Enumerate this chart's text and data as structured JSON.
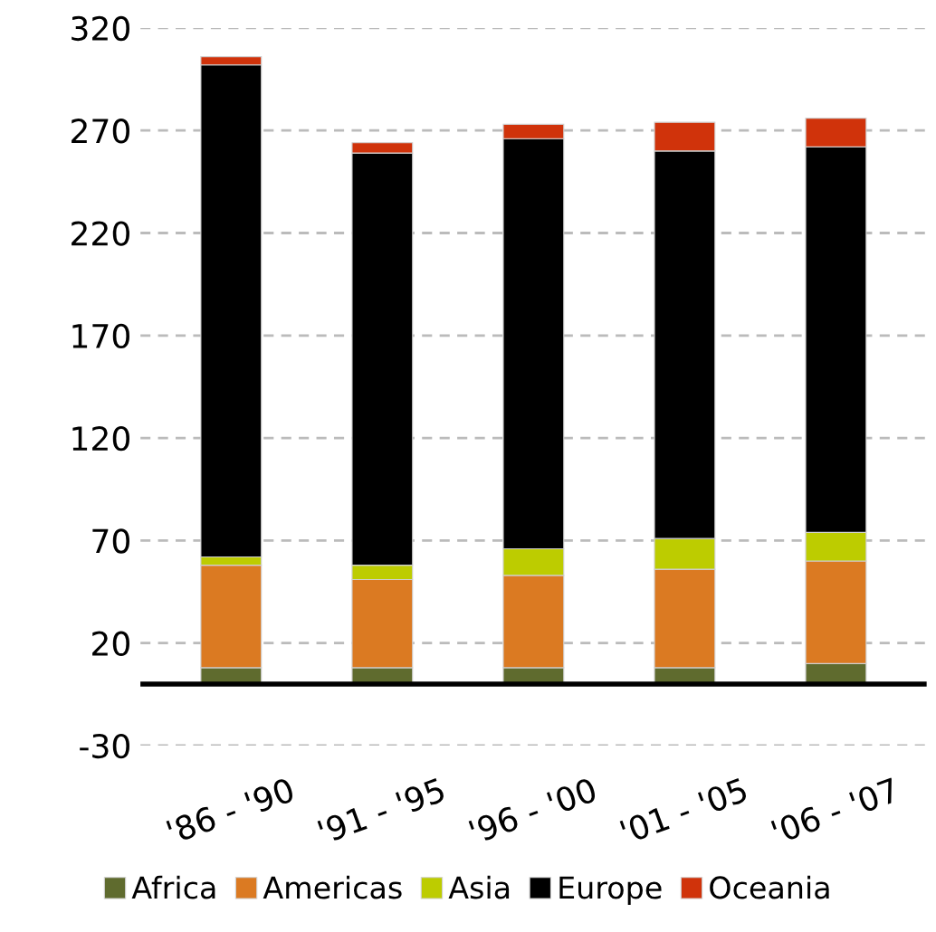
{
  "chart_data": {
    "type": "bar",
    "stacked": true,
    "categories": [
      "'86 - '90",
      "'91 - '95",
      "'96 - '00",
      "'01 - '05",
      "'06 - '07"
    ],
    "series": [
      {
        "name": "Africa",
        "color": "#5f6b2e",
        "values": [
          8,
          8,
          8,
          8,
          10
        ]
      },
      {
        "name": "Americas",
        "color": "#db7a22",
        "values": [
          50,
          43,
          45,
          48,
          50
        ]
      },
      {
        "name": "Asia",
        "color": "#bdcc00",
        "values": [
          4,
          7,
          13,
          15,
          14
        ]
      },
      {
        "name": "Europe",
        "color": "#000000",
        "values": [
          240,
          201,
          200,
          189,
          188
        ]
      },
      {
        "name": "Oceania",
        "color": "#d0330b",
        "values": [
          4,
          5,
          7,
          14,
          14
        ]
      }
    ],
    "ylim": [
      -30,
      320
    ],
    "yticks": [
      -30,
      20,
      70,
      120,
      170,
      220,
      270,
      320
    ],
    "grid": "y",
    "legend": "bottom"
  }
}
